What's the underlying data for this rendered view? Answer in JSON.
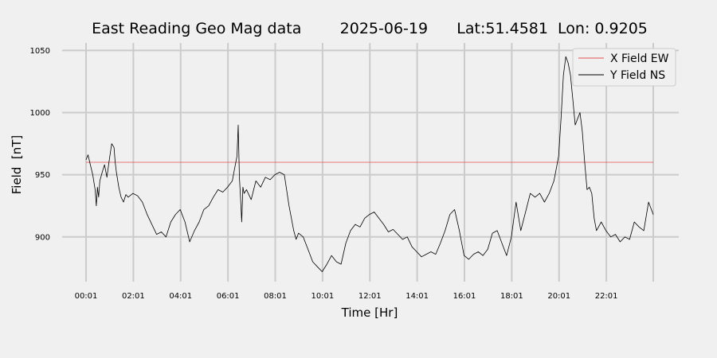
{
  "chart_data": {
    "type": "line",
    "title": "East Reading Geo Mag data        2025-06-19      Lat:51.4581  Lon: 0.9205",
    "xlabel": "Time  [Hr]",
    "ylabel": "Field  [nT]",
    "x_unit": "hours",
    "xlim": [
      0.017,
      24.1
    ],
    "ylim": [
      864,
      1056
    ],
    "grid": true,
    "legend_position": "top-right",
    "x_ticks": [
      {
        "value": 0.017,
        "label": "00:01"
      },
      {
        "value": 2.017,
        "label": "02:01"
      },
      {
        "value": 4.017,
        "label": "04:01"
      },
      {
        "value": 6.017,
        "label": "06:01"
      },
      {
        "value": 8.017,
        "label": "08:01"
      },
      {
        "value": 10.017,
        "label": "10:01"
      },
      {
        "value": 12.017,
        "label": "12:01"
      },
      {
        "value": 14.017,
        "label": "14:01"
      },
      {
        "value": 16.017,
        "label": "16:01"
      },
      {
        "value": 18.017,
        "label": "18:01"
      },
      {
        "value": 20.017,
        "label": "20:01"
      },
      {
        "value": 22.017,
        "label": "22:01"
      },
      {
        "value": 24.0,
        "label": ""
      }
    ],
    "y_ticks": [
      {
        "value": 900,
        "label": "900"
      },
      {
        "value": 950,
        "label": "950"
      },
      {
        "value": 1000,
        "label": "1000"
      },
      {
        "value": 1050,
        "label": "1050"
      }
    ],
    "series": [
      {
        "name": "X Field EW",
        "color": "#e05050",
        "x": [
          0.017,
          24.0
        ],
        "y": [
          960,
          960
        ]
      },
      {
        "name": "Y Field NS",
        "color": "#000000",
        "x": [
          0.017,
          0.1,
          0.2,
          0.3,
          0.4,
          0.45,
          0.5,
          0.55,
          0.6,
          0.7,
          0.8,
          0.9,
          1.0,
          1.1,
          1.2,
          1.25,
          1.3,
          1.4,
          1.5,
          1.6,
          1.7,
          1.8,
          2.0,
          2.2,
          2.4,
          2.6,
          2.8,
          3.0,
          3.2,
          3.4,
          3.6,
          3.8,
          4.0,
          4.2,
          4.4,
          4.6,
          4.8,
          5.0,
          5.2,
          5.4,
          5.6,
          5.8,
          6.0,
          6.2,
          6.3,
          6.4,
          6.45,
          6.5,
          6.55,
          6.6,
          6.65,
          6.7,
          6.8,
          7.0,
          7.2,
          7.4,
          7.6,
          7.8,
          8.0,
          8.2,
          8.4,
          8.6,
          8.8,
          8.9,
          9.0,
          9.2,
          9.4,
          9.6,
          9.8,
          10.0,
          10.2,
          10.4,
          10.6,
          10.8,
          11.0,
          11.2,
          11.4,
          11.6,
          11.8,
          12.0,
          12.2,
          12.4,
          12.6,
          12.8,
          13.0,
          13.2,
          13.4,
          13.6,
          13.8,
          14.0,
          14.2,
          14.4,
          14.6,
          14.8,
          15.0,
          15.2,
          15.4,
          15.6,
          15.8,
          16.0,
          16.2,
          16.4,
          16.6,
          16.8,
          17.0,
          17.2,
          17.4,
          17.6,
          17.8,
          18.0,
          18.2,
          18.4,
          18.6,
          18.8,
          19.0,
          19.2,
          19.4,
          19.6,
          19.8,
          19.9,
          20.0,
          20.1,
          20.2,
          20.3,
          20.4,
          20.5,
          20.6,
          20.7,
          20.8,
          20.9,
          21.0,
          21.1,
          21.2,
          21.3,
          21.4,
          21.5,
          21.6,
          21.8,
          22.0,
          22.2,
          22.4,
          22.6,
          22.8,
          23.0,
          23.2,
          23.4,
          23.6,
          23.8,
          24.0
        ],
        "y": [
          962,
          966,
          958,
          950,
          938,
          925,
          940,
          932,
          945,
          952,
          958,
          948,
          962,
          975,
          972,
          960,
          952,
          940,
          932,
          928,
          934,
          932,
          935,
          933,
          928,
          918,
          910,
          902,
          904,
          900,
          912,
          918,
          922,
          912,
          896,
          905,
          912,
          922,
          925,
          932,
          938,
          936,
          940,
          945,
          955,
          965,
          990,
          948,
          932,
          912,
          940,
          935,
          938,
          930,
          945,
          940,
          948,
          946,
          950,
          952,
          950,
          925,
          905,
          898,
          903,
          900,
          890,
          880,
          876,
          872,
          878,
          885,
          880,
          878,
          895,
          905,
          910,
          908,
          915,
          918,
          920,
          915,
          910,
          904,
          906,
          902,
          898,
          900,
          892,
          888,
          884,
          886,
          888,
          886,
          895,
          905,
          918,
          922,
          905,
          885,
          882,
          886,
          888,
          885,
          890,
          903,
          905,
          895,
          885,
          900,
          928,
          905,
          920,
          935,
          932,
          935,
          928,
          935,
          945,
          955,
          965,
          995,
          1030,
          1045,
          1040,
          1030,
          1010,
          990,
          995,
          1000,
          985,
          960,
          938,
          940,
          935,
          915,
          905,
          912,
          905,
          900,
          902,
          896,
          900,
          898,
          912,
          908,
          905,
          928,
          918
        ]
      }
    ]
  }
}
